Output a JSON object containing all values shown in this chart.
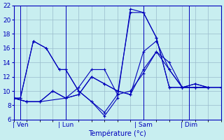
{
  "xlabel": "Température (°c)",
  "bg_color": "#c8eef0",
  "grid_color": "#99bbcc",
  "line_color": "#0000bb",
  "ylim": [
    6,
    22
  ],
  "yticks": [
    6,
    8,
    10,
    12,
    14,
    16,
    18,
    20,
    22
  ],
  "xlim": [
    0,
    32
  ],
  "xtick_positions": [
    1,
    8,
    20,
    27
  ],
  "xtick_labels": [
    "| Ven",
    "| Lun",
    "| Sam",
    "| Dim"
  ],
  "series": [
    {
      "x": [
        0,
        1,
        3,
        5,
        7,
        8,
        10,
        12,
        14,
        16,
        18,
        20,
        22,
        24,
        26,
        28,
        30,
        32
      ],
      "y": [
        9,
        9,
        17,
        16,
        13,
        13,
        10,
        8.5,
        6.5,
        9,
        21.5,
        21,
        17.5,
        10.5,
        10.5,
        11,
        10.5,
        10.5
      ]
    },
    {
      "x": [
        0,
        1,
        3,
        5,
        7,
        8,
        10,
        12,
        14,
        16,
        18,
        20,
        22,
        24,
        26,
        28,
        30,
        32
      ],
      "y": [
        9,
        9,
        17,
        16,
        13,
        13,
        10,
        8.5,
        7,
        9.5,
        21,
        21,
        17.5,
        10.5,
        10.5,
        11,
        10.5,
        10.5
      ]
    },
    {
      "x": [
        0,
        2,
        4,
        6,
        8,
        10,
        12,
        14,
        16,
        18,
        20,
        22,
        24,
        26,
        28,
        30
      ],
      "y": [
        9,
        8.5,
        8.5,
        10,
        9,
        9.5,
        12,
        11,
        10,
        9.5,
        13,
        15.5,
        13,
        10.5,
        10.5,
        10.5
      ]
    },
    {
      "x": [
        0,
        2,
        4,
        6,
        8,
        10,
        12,
        14,
        16,
        18,
        20,
        22,
        24,
        26,
        28,
        30
      ],
      "y": [
        9,
        8.5,
        8.5,
        10,
        9,
        9.5,
        12,
        11,
        10,
        9.5,
        15.5,
        17,
        13,
        10.5,
        10.5,
        10.5
      ]
    },
    {
      "x": [
        0,
        2,
        4,
        8,
        10,
        12,
        14,
        16,
        18,
        20,
        22,
        24,
        26,
        28,
        30
      ],
      "y": [
        9,
        8.5,
        8.5,
        9,
        10.5,
        13,
        13,
        9.5,
        10,
        12.5,
        15.5,
        14,
        10.5,
        10.5,
        10.5
      ]
    }
  ]
}
